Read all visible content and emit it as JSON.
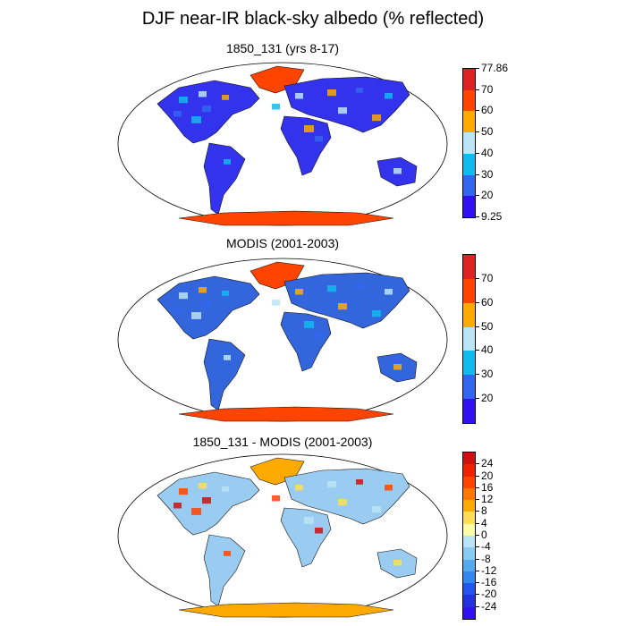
{
  "title": "DJF near-IR black-sky albedo (% reflected)",
  "panels": [
    {
      "title": "1850_131 (yrs 8-17)",
      "colorbar": {
        "colors": [
          "#3311ee",
          "#3366ee",
          "#11bbee",
          "#bbe4f6",
          "#ffaa00",
          "#ff4400",
          "#dd2222"
        ],
        "labels": [
          "9.25",
          "20",
          "30",
          "40",
          "50",
          "60",
          "70",
          "77.86"
        ],
        "min_label": "9.25",
        "max_label": "77.86"
      },
      "land_color": "#3333ee",
      "ice_color": "#ff4400"
    },
    {
      "title": "MODIS (2001-2003)",
      "colorbar": {
        "colors": [
          "#3311ee",
          "#3366ee",
          "#11bbee",
          "#bbe4f6",
          "#ffaa00",
          "#ff4400",
          "#dd2222"
        ],
        "labels": [
          "20",
          "30",
          "40",
          "50",
          "60",
          "70"
        ]
      },
      "land_color": "#3366dd",
      "ice_color": "#ff4400"
    },
    {
      "title": "1850_131 - MODIS (2001-2003)",
      "colorbar": {
        "colors": [
          "#3311ee",
          "#2233dd",
          "#2255ee",
          "#3388ee",
          "#55aaee",
          "#88ccf2",
          "#bbe4f6",
          "#ffffaa",
          "#ffdd55",
          "#ffaa00",
          "#ff7700",
          "#ff4400",
          "#ee2200",
          "#cc1111"
        ],
        "labels": [
          "-24",
          "-20",
          "-16",
          "-12",
          "-8",
          "-4",
          "0",
          "4",
          "8",
          "12",
          "16",
          "20",
          "24"
        ]
      },
      "land_color": "#99ccf0",
      "ice_color": "#ffaa00"
    }
  ]
}
